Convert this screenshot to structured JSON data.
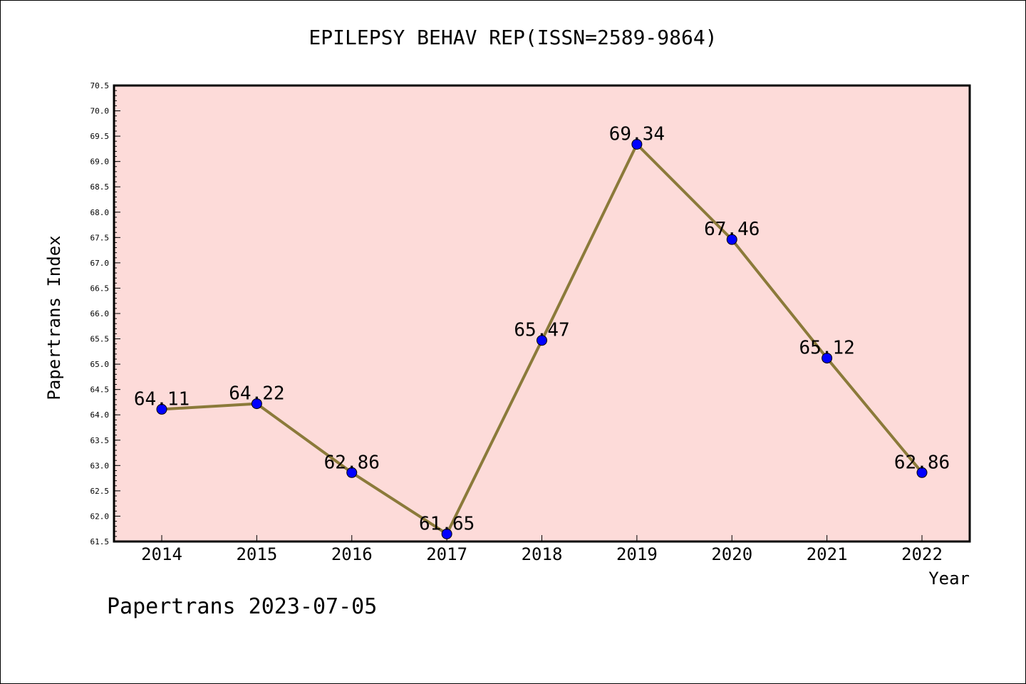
{
  "chart_data": {
    "type": "line",
    "title": "EPILEPSY BEHAV REP(ISSN=2589-9864)",
    "xlabel": "Year",
    "ylabel": "Papertrans Index",
    "categories": [
      "2014",
      "2015",
      "2016",
      "2017",
      "2018",
      "2019",
      "2020",
      "2021",
      "2022"
    ],
    "series": [
      {
        "values": [
          64.11,
          64.22,
          62.86,
          61.65,
          65.47,
          69.34,
          67.46,
          65.12,
          62.86
        ],
        "data_labels": [
          "64.11",
          "64.22",
          "62.86",
          "61.65",
          "65.47",
          "69.34",
          "67.46",
          "65.12",
          "62.86"
        ],
        "line_color": "#8b7a3a",
        "marker_color": "#0000ff"
      }
    ],
    "ylim": [
      61.5,
      70.5
    ],
    "yticks": [
      "61.5",
      "62.0",
      "62.5",
      "63.0",
      "63.5",
      "64.0",
      "64.5",
      "65.0",
      "65.5",
      "66.0",
      "66.5",
      "67.0",
      "67.5",
      "68.0",
      "68.5",
      "69.0",
      "69.5",
      "70.0",
      "70.5"
    ],
    "plot_background": "#fddbd9",
    "grid": false
  },
  "footer": "Papertrans 2023-07-05"
}
